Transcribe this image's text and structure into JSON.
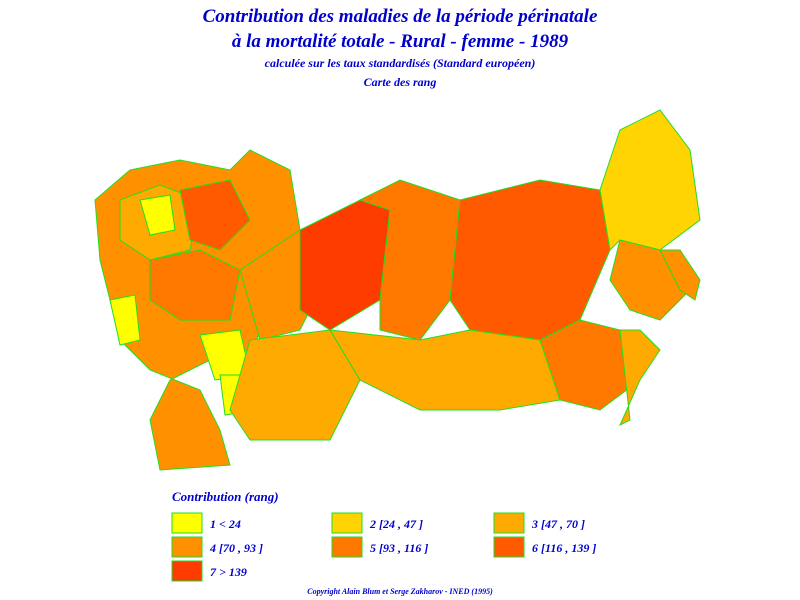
{
  "header": {
    "title_line1": "Contribution des maladies de la période périnatale",
    "title_line2": "à la mortalité totale - Rural - femme - 1989",
    "subtitle": "calculée sur les taux standardisés (Standard européen)",
    "map_kind": "Carte des rang"
  },
  "legend": {
    "title": "Contribution (rang)",
    "items": [
      {
        "label": "1 < 24",
        "color": "#ffff00"
      },
      {
        "label": "2 [24 , 47 ]",
        "color": "#ffd400"
      },
      {
        "label": "3 [47 , 70 ]",
        "color": "#ffaa00"
      },
      {
        "label": "4 [70 , 93 ]",
        "color": "#ff9100"
      },
      {
        "label": "5 [93 , 116 ]",
        "color": "#ff7800"
      },
      {
        "label": "6 [116 , 139 ]",
        "color": "#ff5a00"
      },
      {
        "label": "7 > 139",
        "color": "#ff3c00"
      }
    ]
  },
  "footer": {
    "copyright": "Copyright Alain Blum et Serge Zakharov - INED (1995)"
  }
}
